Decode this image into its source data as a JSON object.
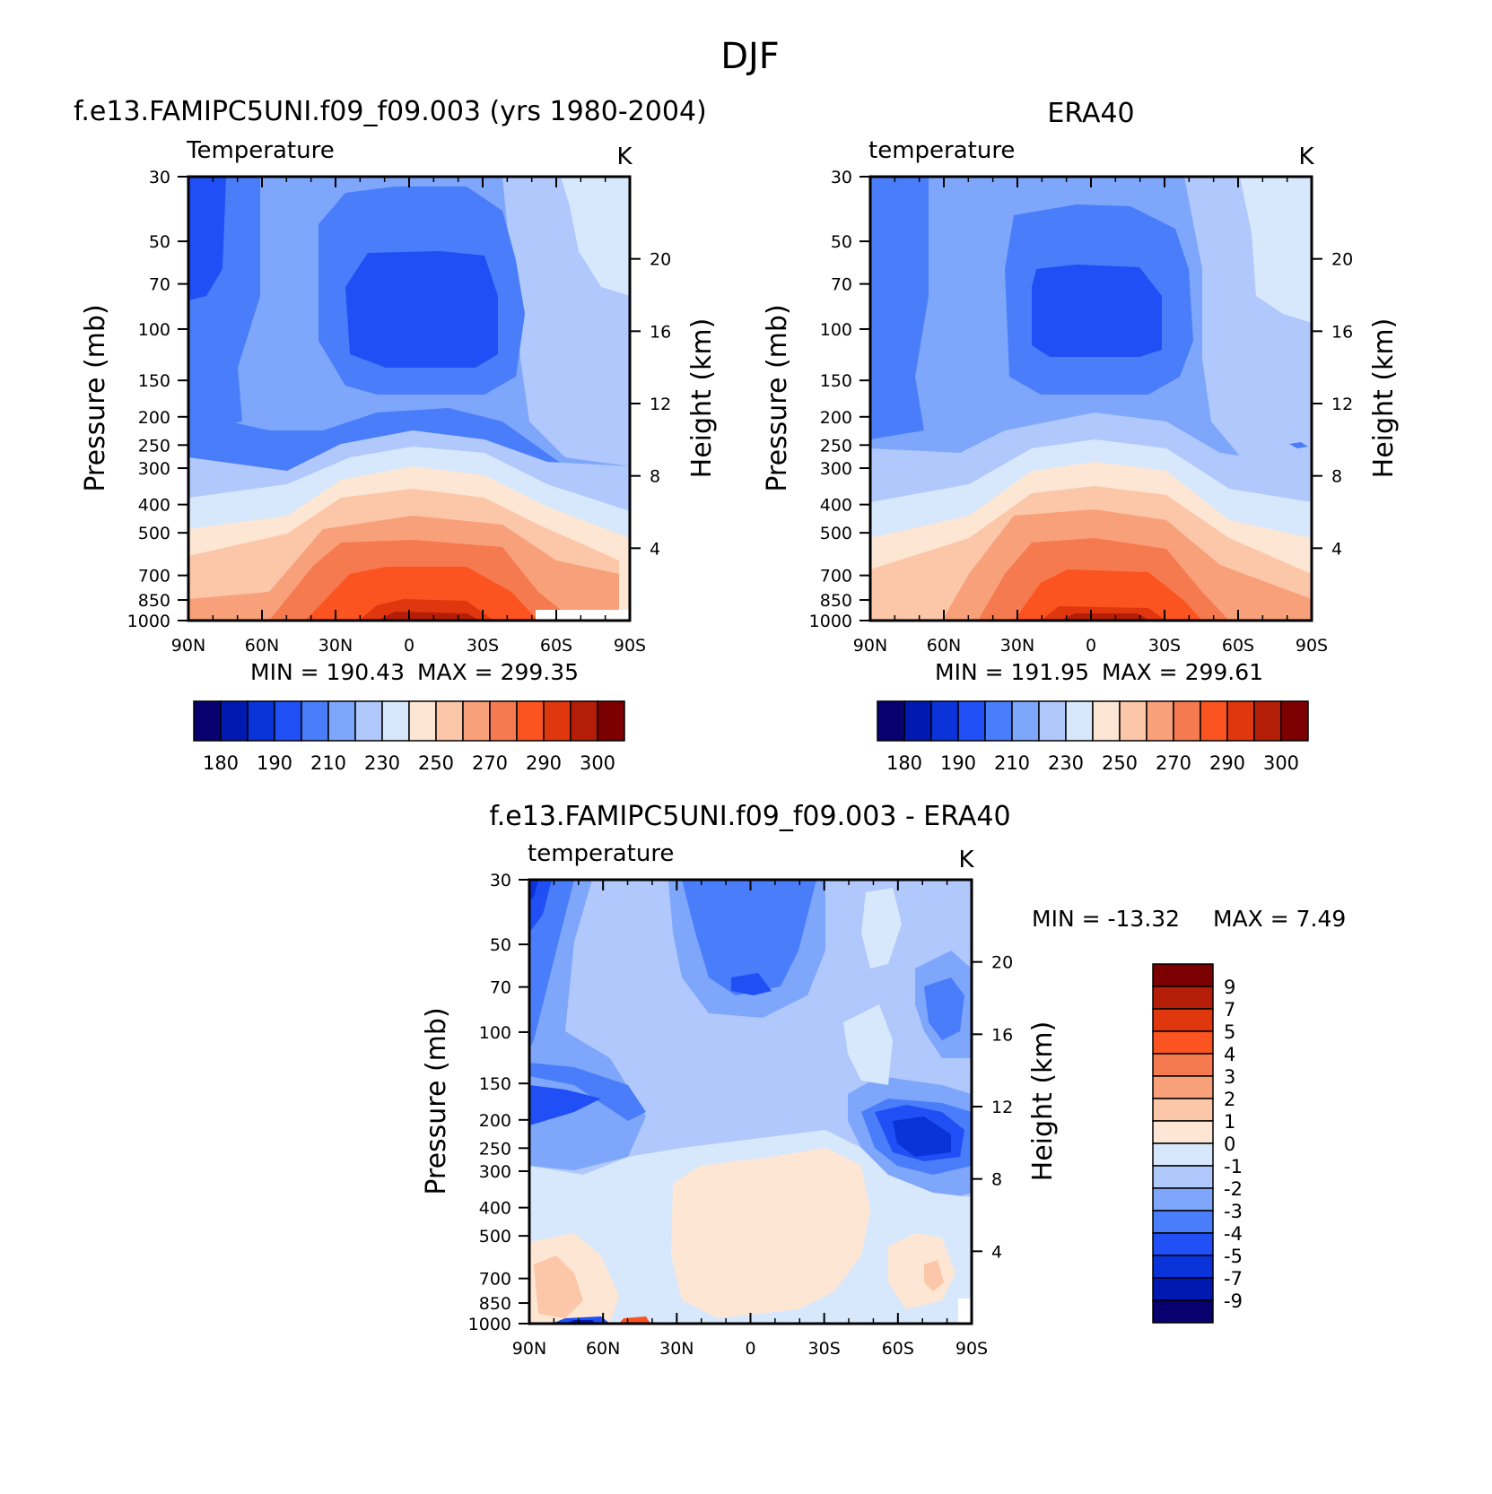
{
  "page": {
    "title": "DJF"
  },
  "palettes": {
    "abs": [
      "#08006e",
      "#0019b0",
      "#0a33d9",
      "#1f4ff5",
      "#4a7dfa",
      "#7ea6fb",
      "#b0c8fc",
      "#d8e8fc",
      "#fde6d4",
      "#fbc7a8",
      "#f8a07a",
      "#f67a4f",
      "#fb5420",
      "#e0370f",
      "#b41e08",
      "#7c0000"
    ],
    "diff": [
      "#08006e",
      "#0019b0",
      "#0a33d9",
      "#1f4ff5",
      "#4a7dfa",
      "#7ea6fb",
      "#b0c8fc",
      "#d8e8fc",
      "#fde6d4",
      "#fbc7a8",
      "#f8a07a",
      "#f67a4f",
      "#fb5420",
      "#e0370f",
      "#b41e08",
      "#7c0000"
    ]
  },
  "chart_data": [
    {
      "id": "model",
      "type": "heatmap",
      "title": "f.e13.FAMIPC5UNI.f09_f09.003 (yrs 1980-2004)",
      "left_label": "Temperature",
      "units": "K",
      "ylabel": "Pressure (mb)",
      "y2label": "Height (km)",
      "x_ticks": [
        "90N",
        "60N",
        "30N",
        "0",
        "30S",
        "60S",
        "90S"
      ],
      "y_ticks": [
        "30",
        "50",
        "70",
        "100",
        "150",
        "200",
        "250",
        "300",
        "400",
        "500",
        "700",
        "850",
        "1000"
      ],
      "y2_ticks": [
        "4",
        "8",
        "12",
        "16",
        "20"
      ],
      "min_label": "MIN = 190.43",
      "max_label": "MAX = 299.35",
      "colorbar_labels": [
        "180",
        "190",
        "210",
        "230",
        "250",
        "270",
        "290",
        "300"
      ]
    },
    {
      "id": "obs",
      "type": "heatmap",
      "title": "ERA40",
      "left_label": "temperature",
      "units": "K",
      "ylabel": "Pressure (mb)",
      "y2label": "Height (km)",
      "x_ticks": [
        "90N",
        "60N",
        "30N",
        "0",
        "30S",
        "60S",
        "90S"
      ],
      "y_ticks": [
        "30",
        "50",
        "70",
        "100",
        "150",
        "200",
        "250",
        "300",
        "400",
        "500",
        "700",
        "850",
        "1000"
      ],
      "y2_ticks": [
        "4",
        "8",
        "12",
        "16",
        "20"
      ],
      "min_label": "MIN = 191.95",
      "max_label": "MAX = 299.61",
      "colorbar_labels": [
        "180",
        "190",
        "210",
        "230",
        "250",
        "270",
        "290",
        "300"
      ]
    },
    {
      "id": "diff",
      "type": "heatmap",
      "title": "f.e13.FAMIPC5UNI.f09_f09.003 - ERA40",
      "left_label": "temperature",
      "units": "K",
      "ylabel": "Pressure (mb)",
      "y2label": "Height (km)",
      "x_ticks": [
        "90N",
        "60N",
        "30N",
        "0",
        "30S",
        "60S",
        "90S"
      ],
      "y_ticks": [
        "30",
        "50",
        "70",
        "100",
        "150",
        "200",
        "250",
        "300",
        "400",
        "500",
        "700",
        "850",
        "1000"
      ],
      "y2_ticks": [
        "4",
        "8",
        "12",
        "16",
        "20"
      ],
      "min_label": "MIN = -13.32",
      "max_label": "MAX = 7.49",
      "colorbar_labels": [
        "9",
        "7",
        "5",
        "4",
        "3",
        "2",
        "1",
        "0",
        "-1",
        "-2",
        "-3",
        "-4",
        "-5",
        "-7",
        "-9"
      ]
    }
  ]
}
